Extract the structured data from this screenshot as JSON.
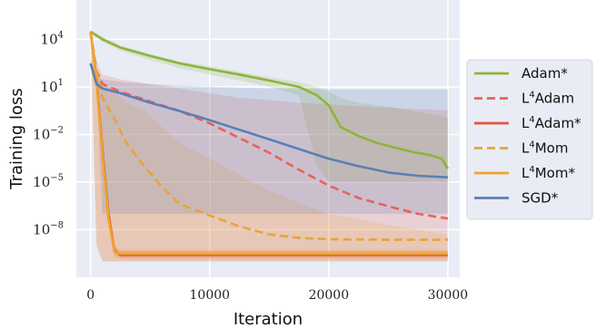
{
  "chart_data": {
    "type": "line",
    "xlabel": "Iteration",
    "ylabel": "Training loss",
    "yscale": "log",
    "xlim": [
      -1200,
      31000
    ],
    "ylim": [
      1e-11,
      3000000.0
    ],
    "x_ticks": [
      0,
      10000,
      20000,
      30000
    ],
    "x_tick_labels": [
      "0",
      "10000",
      "20000",
      "30000"
    ],
    "y_ticks": [
      1e-08,
      1e-05,
      0.01,
      10,
      10000
    ],
    "y_tick_labels": [
      {
        "base": "10",
        "exp": "−8"
      },
      {
        "base": "10",
        "exp": "−5"
      },
      {
        "base": "10",
        "exp": "−2"
      },
      {
        "base": "10",
        "exp": "1"
      },
      {
        "base": "10",
        "exp": "4"
      }
    ],
    "grid": true,
    "legend_position": "right",
    "series": [
      {
        "name": "Adam*",
        "name_main": "Adam*",
        "name_prefix": "",
        "name_sup": "",
        "color": "#8db43a",
        "dash": "solid",
        "x": [
          0,
          1000,
          2500,
          5000,
          7500,
          10000,
          12500,
          15000,
          17500,
          19000,
          20000,
          21000,
          22500,
          24000,
          25500,
          27000,
          28500,
          29500,
          30000
        ],
        "y": [
          30000,
          10000,
          3000,
          900,
          300,
          130,
          60,
          25,
          10,
          3,
          0.7,
          0.03,
          0.008,
          0.003,
          0.0015,
          0.0008,
          0.0005,
          0.0003,
          7e-05
        ],
        "lower": [
          25000,
          7000,
          2000,
          500,
          150,
          60,
          25,
          10,
          3,
          0.0001,
          1e-05,
          1e-05,
          1e-05,
          1e-05,
          1e-05,
          1e-05,
          1e-05,
          1e-05,
          1e-05
        ],
        "upper": [
          40000,
          14000,
          4000,
          1200,
          400,
          200,
          90,
          40,
          20,
          10,
          5,
          2,
          1,
          0.7,
          0.5,
          0.3,
          0.2,
          0.15,
          0.1
        ]
      },
      {
        "name": "L⁴Adam",
        "name_main": "Adam",
        "name_prefix": "L",
        "name_sup": "4",
        "color": "#e8625a",
        "dash": "dashed",
        "x": [
          0,
          500,
          1000,
          2500,
          5000,
          7500,
          10000,
          12500,
          15000,
          17500,
          20000,
          22500,
          25000,
          27500,
          30000
        ],
        "y": [
          30000,
          100,
          15,
          5,
          1.2,
          0.3,
          0.05,
          0.006,
          0.0007,
          6e-05,
          6e-06,
          1e-06,
          3e-07,
          1e-07,
          5e-08
        ],
        "lower": [
          20000,
          1e-09,
          1e-10,
          1e-10,
          1e-10,
          1e-10,
          1e-10,
          1e-10,
          1e-10,
          1e-10,
          1e-10,
          1e-10,
          1e-10,
          1e-10,
          1e-10
        ],
        "upper": [
          40000,
          400,
          60,
          30,
          15,
          8,
          4,
          2,
          1.5,
          1,
          0.8,
          0.6,
          0.5,
          0.4,
          0.35
        ]
      },
      {
        "name": "L⁴Adam*",
        "name_main": "Adam*",
        "name_prefix": "L",
        "name_sup": "4",
        "color": "#e2533a",
        "dash": "solid",
        "x": [
          0,
          500,
          1000,
          1500,
          2000,
          2500,
          5000,
          10000,
          20000,
          30000
        ],
        "y": [
          30000,
          30,
          0.001,
          1e-07,
          5e-10,
          2.5e-10,
          2.5e-10,
          2.5e-10,
          2.5e-10,
          2.5e-10
        ],
        "lower": [
          20000,
          10,
          0.0003,
          5e-08,
          2.5e-10,
          1.5e-10,
          1.5e-10,
          1.5e-10,
          1.5e-10,
          1.5e-10
        ],
        "upper": [
          40000,
          80,
          0.003,
          3e-07,
          1e-09,
          5e-10,
          5e-10,
          5e-10,
          5e-10,
          5e-10
        ]
      },
      {
        "name": "L⁴Mom",
        "name_main": "Mom",
        "name_prefix": "L",
        "name_sup": "4",
        "color": "#e8a33a",
        "dash": "dashed",
        "x": [
          0,
          500,
          1000,
          2000,
          3000,
          4500,
          6000,
          7500,
          10000,
          12500,
          15000,
          17500,
          20000,
          25000,
          30000
        ],
        "y": [
          30000,
          100,
          2,
          0.1,
          0.003,
          0.0001,
          5e-06,
          4e-07,
          8e-08,
          1.6e-08,
          5e-09,
          3e-09,
          2.5e-09,
          2.3e-09,
          2.3e-09
        ],
        "lower": [
          20000,
          1e-09,
          1e-10,
          1e-10,
          1e-10,
          1e-10,
          1e-10,
          1e-10,
          1e-10,
          1e-10,
          1e-10,
          1e-10,
          1e-10,
          1e-10,
          1e-10
        ],
        "upper": [
          40000,
          200,
          20,
          5,
          1,
          0.3,
          0.03,
          0.003,
          0.0003,
          3e-05,
          3e-06,
          5e-07,
          1e-07,
          2e-08,
          5e-09
        ]
      },
      {
        "name": "L⁴Mom*",
        "name_main": "Mom*",
        "name_prefix": "L",
        "name_sup": "4",
        "color": "#efa42a",
        "dash": "solid",
        "x": [
          0,
          500,
          1000,
          1500,
          2000,
          2500,
          5000,
          10000,
          20000,
          30000
        ],
        "y": [
          30000,
          20,
          0.0005,
          5e-08,
          4e-10,
          3e-10,
          3e-10,
          3e-10,
          3e-10,
          3e-10
        ],
        "lower": [
          20000,
          8,
          0.0002,
          2e-08,
          2e-10,
          1.6e-10,
          1.6e-10,
          1.6e-10,
          1.6e-10,
          1.6e-10
        ],
        "upper": [
          40000,
          60,
          0.002,
          2e-07,
          8e-10,
          5e-10,
          5e-10,
          5e-10,
          5e-10,
          5e-10
        ]
      },
      {
        "name": "SGD*",
        "name_main": "SGD*",
        "name_prefix": "",
        "name_sup": "",
        "color": "#5b7fb5",
        "dash": "solid",
        "x": [
          0,
          500,
          1000,
          2500,
          5000,
          7500,
          10000,
          12500,
          15000,
          17500,
          20000,
          22500,
          25000,
          27500,
          30000
        ],
        "y": [
          300,
          15,
          8,
          4,
          1,
          0.3,
          0.08,
          0.02,
          0.005,
          0.0012,
          0.0003,
          0.0001,
          4e-05,
          2.5e-05,
          2e-05
        ],
        "lower": [
          150,
          8,
          1e-07,
          1e-07,
          1e-07,
          1e-07,
          1e-07,
          1e-07,
          1e-07,
          1e-07,
          1e-07,
          1e-07,
          1e-07,
          1e-07,
          1e-07
        ],
        "upper": [
          600,
          40,
          30,
          20,
          15,
          12,
          10,
          9,
          8,
          8,
          7,
          7,
          7,
          7,
          7
        ]
      }
    ]
  }
}
